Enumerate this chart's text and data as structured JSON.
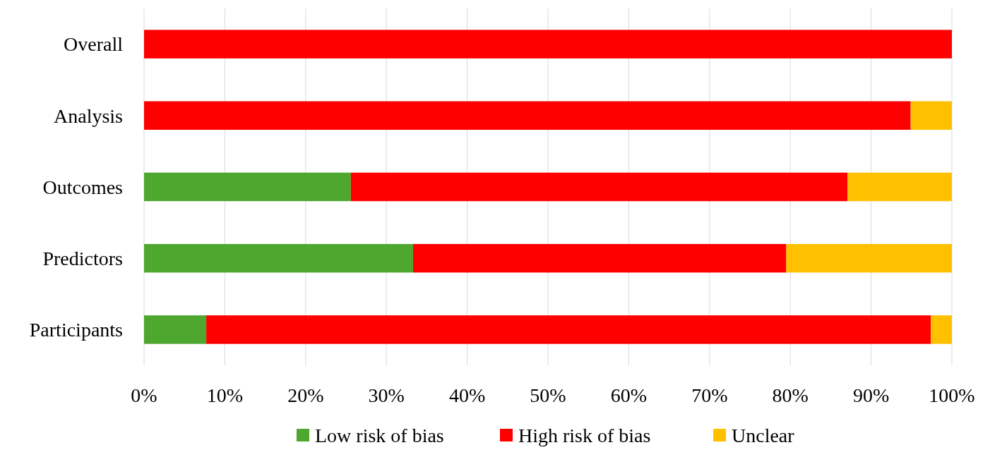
{
  "chart_data": {
    "type": "bar",
    "orientation": "horizontal",
    "stacked": true,
    "categories": [
      "Overall",
      "Analysis",
      "Outcomes",
      "Predictors",
      "Participants"
    ],
    "series": [
      {
        "name": "Low risk of bias",
        "color": "#4ea72e",
        "values": [
          0,
          0,
          25.6,
          33.3,
          7.7
        ]
      },
      {
        "name": "High risk of bias",
        "color": "#ff0000",
        "values": [
          100,
          94.9,
          61.5,
          46.2,
          89.7
        ]
      },
      {
        "name": "Unclear",
        "color": "#ffc000",
        "values": [
          0,
          5.1,
          12.9,
          20.5,
          2.6
        ]
      }
    ],
    "xlim": [
      0,
      100
    ],
    "xticks": [
      {
        "value": 0,
        "label": "0%"
      },
      {
        "value": 10,
        "label": "10%"
      },
      {
        "value": 20,
        "label": "20%"
      },
      {
        "value": 30,
        "label": "30%"
      },
      {
        "value": 40,
        "label": "40%"
      },
      {
        "value": 50,
        "label": "50%"
      },
      {
        "value": 60,
        "label": "60%"
      },
      {
        "value": 70,
        "label": "70%"
      },
      {
        "value": 80,
        "label": "80%"
      },
      {
        "value": 90,
        "label": "90%"
      },
      {
        "value": 100,
        "label": "100%"
      }
    ],
    "grid": "x",
    "legend": "bottom"
  }
}
